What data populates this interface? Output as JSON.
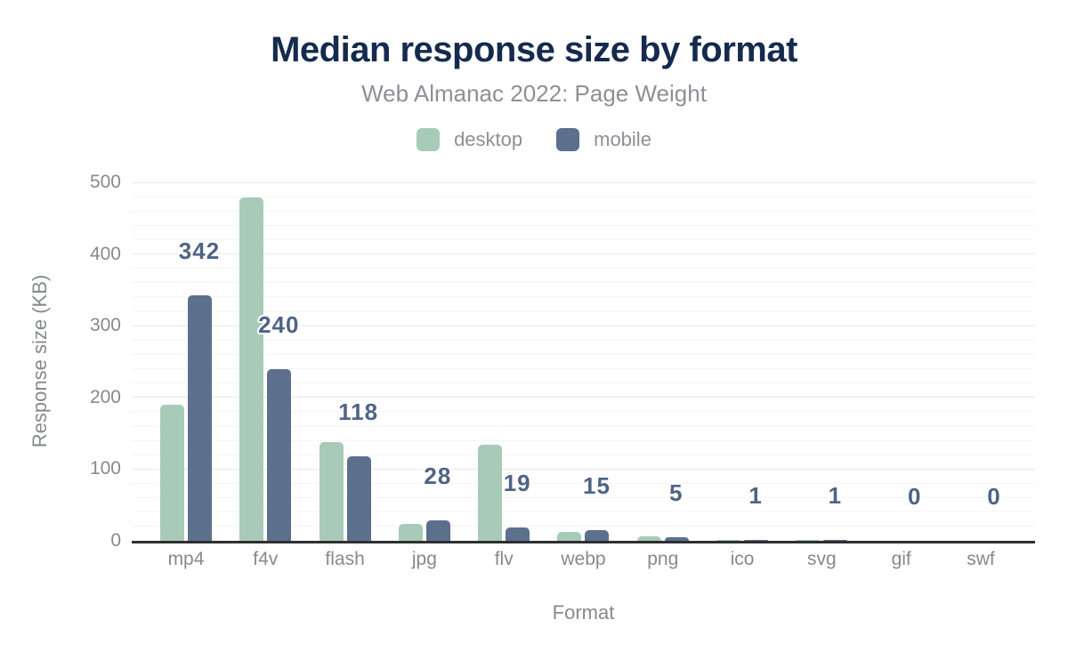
{
  "title": "Median response size by format",
  "subtitle": "Web Almanac 2022: Page Weight",
  "colors": {
    "title": "#152a4e",
    "subtitle": "#8c9096",
    "axis_text": "#87898d",
    "desktop": "#a7cbb8",
    "mobile": "#5c708e",
    "bar_label": "#4e6486",
    "axis_line": "#2f2f2f",
    "grid_minor": "#f5f5f5",
    "grid_major": "#e9e9e9",
    "background": "#ffffff"
  },
  "chart_data": {
    "type": "bar",
    "title": "Median response size by format",
    "subtitle": "Web Almanac 2022: Page Weight",
    "categories": [
      "mp4",
      "f4v",
      "flash",
      "jpg",
      "flv",
      "webp",
      "png",
      "ico",
      "svg",
      "gif",
      "swf"
    ],
    "series": [
      {
        "name": "desktop",
        "color": "#a7cbb8",
        "values": [
          190,
          479,
          138,
          23,
          134,
          12,
          6,
          1,
          1,
          0,
          0
        ]
      },
      {
        "name": "mobile",
        "color": "#5c708e",
        "values": [
          342,
          240,
          118,
          28,
          19,
          15,
          5,
          1,
          1,
          0,
          0
        ]
      }
    ],
    "bar_labels": [
      "342",
      "240",
      "118",
      "28",
      "19",
      "15",
      "5",
      "1",
      "1",
      "0",
      "0"
    ],
    "bar_labels_series": "mobile",
    "xlabel": "Format",
    "ylabel": "Response size (KB)",
    "ylim": [
      0,
      500
    ],
    "yticks": [
      0,
      100,
      200,
      300,
      400,
      500
    ],
    "grid": "horizontal-minor",
    "grid_minor_step": 20,
    "legend_position": "top"
  }
}
